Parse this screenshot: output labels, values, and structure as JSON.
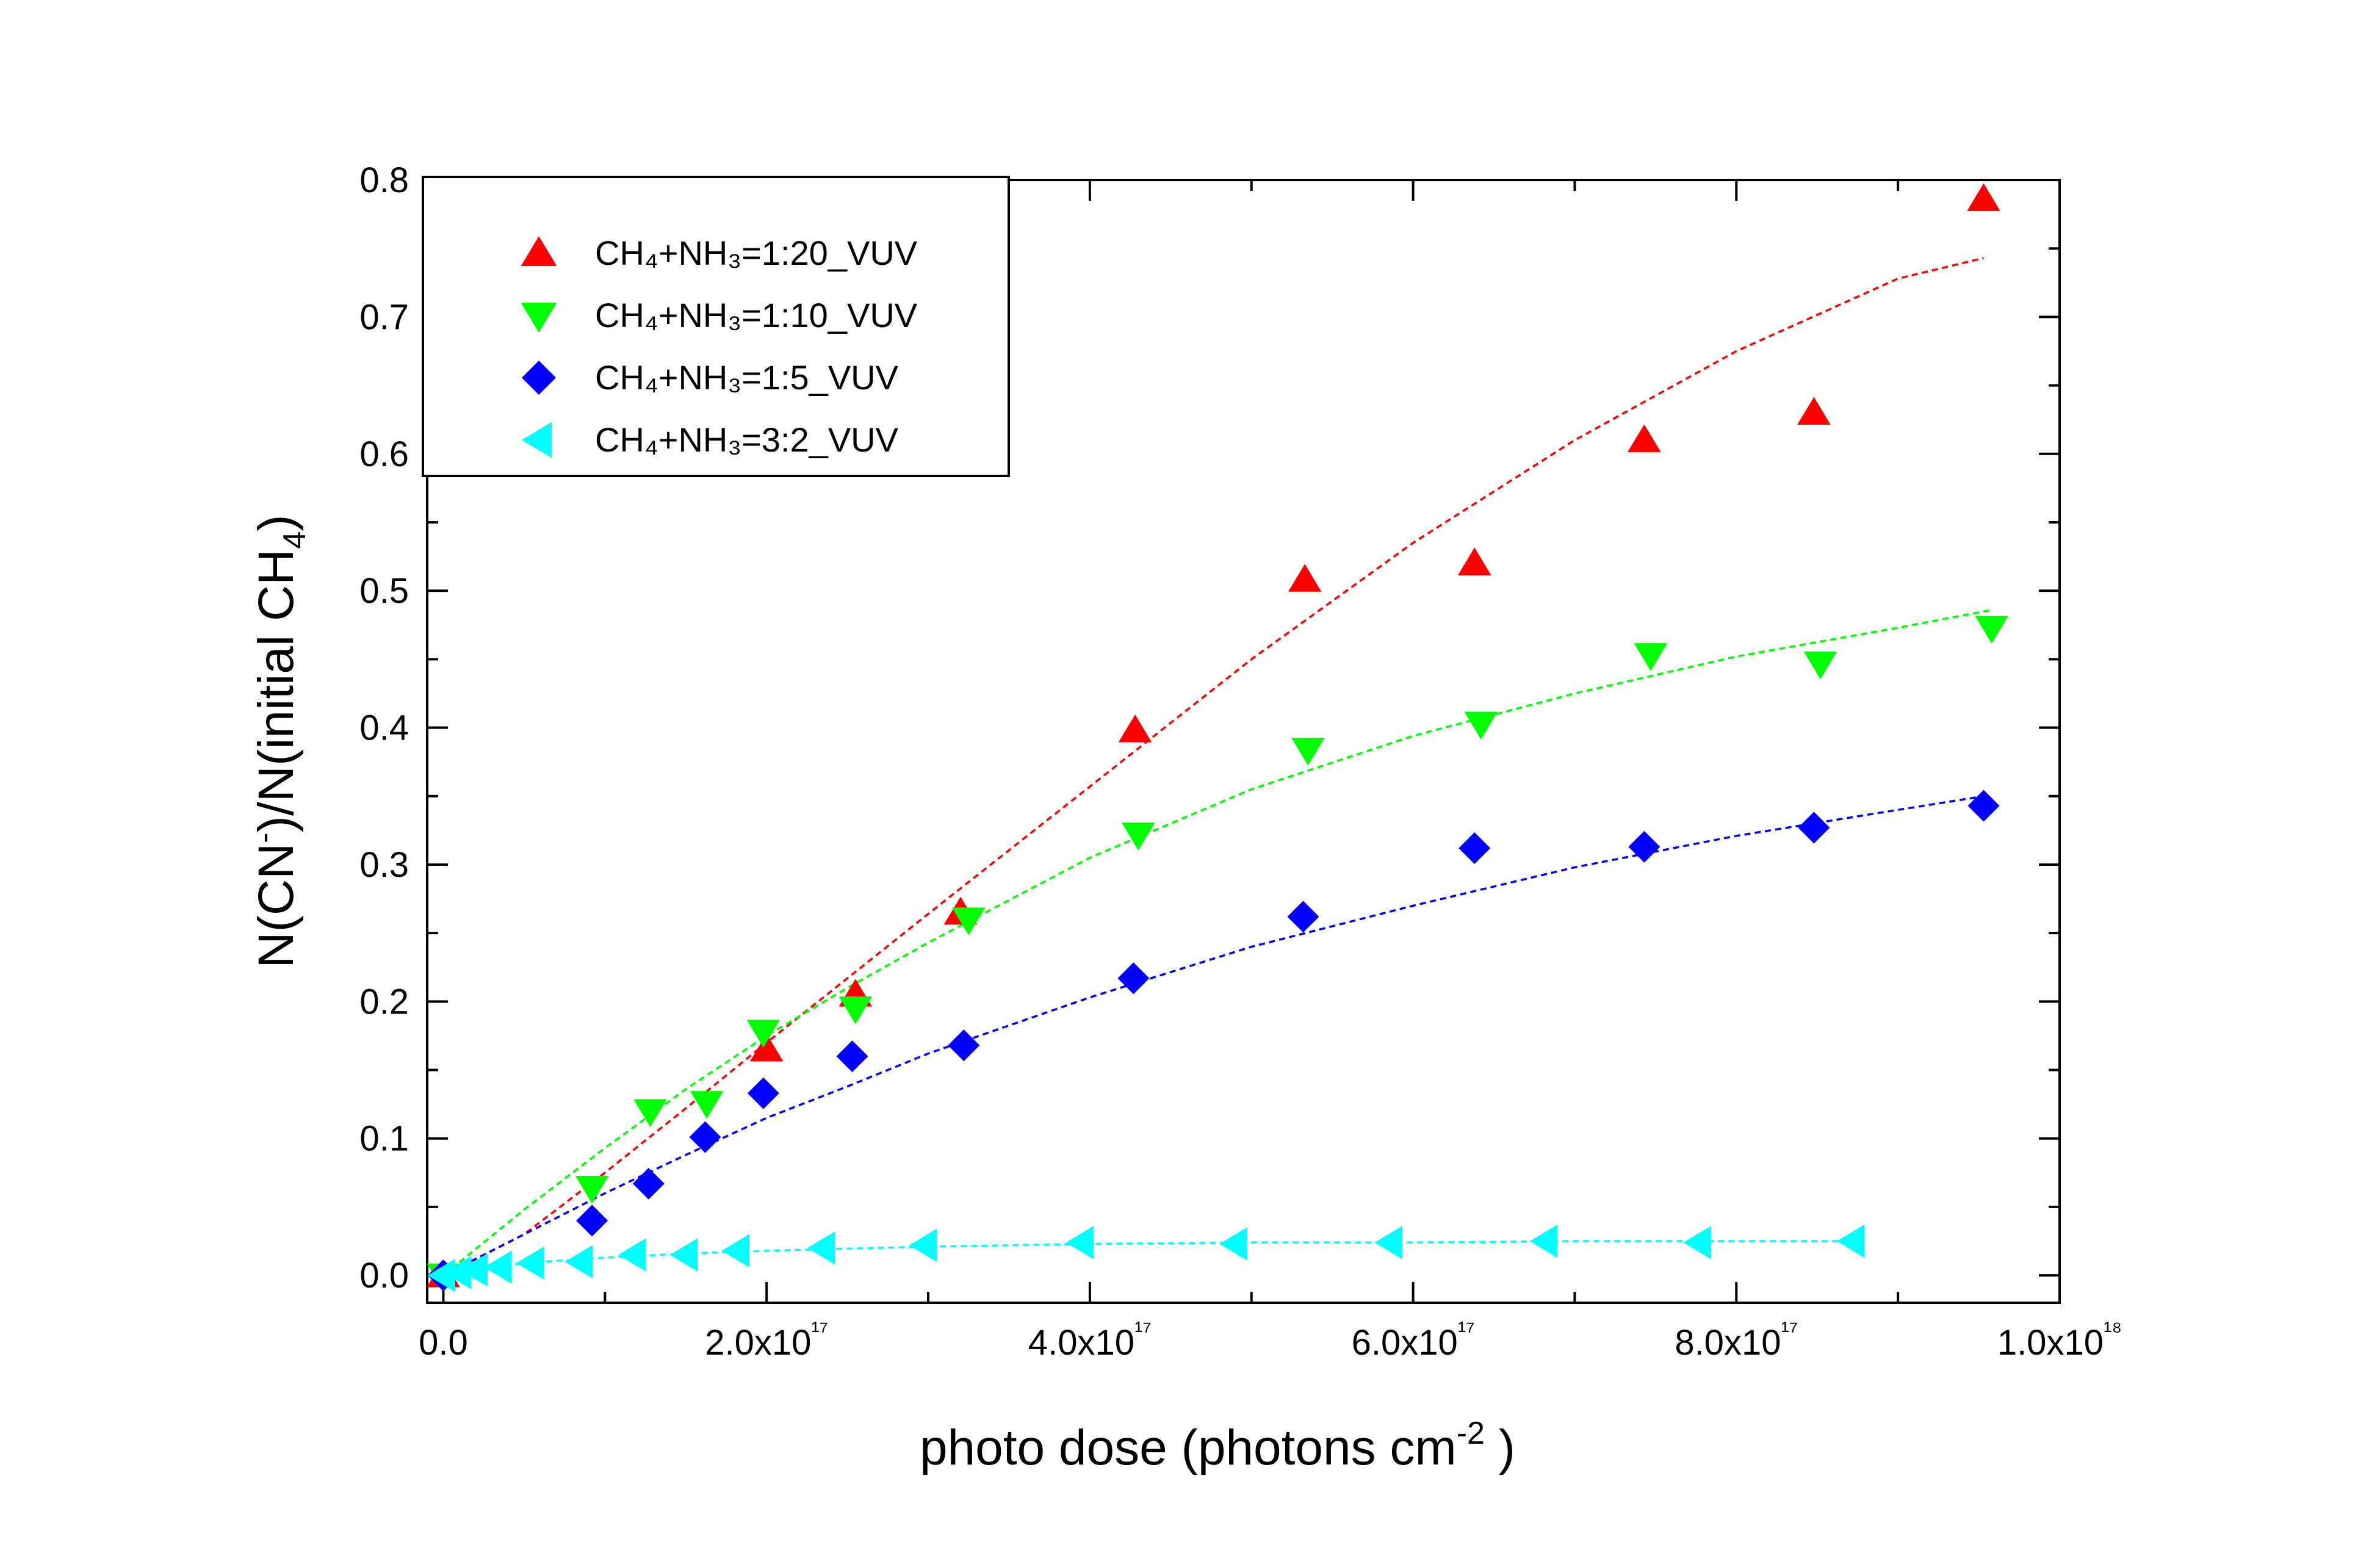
{
  "chart_data": {
    "type": "scatter",
    "xlabel": "photo dose (photons cm⁻² )",
    "ylabel": "N(CN⁻)/N(initial CH₄)",
    "xlim": [
      -1e+16,
      1e+18
    ],
    "ylim": [
      -0.02,
      0.8
    ],
    "x_ticks": [
      {
        "value": 0,
        "label": "0.0"
      },
      {
        "value": 2e+17,
        "label": "2.0x10¹⁷"
      },
      {
        "value": 4e+17,
        "label": "4.0x10¹⁷"
      },
      {
        "value": 6e+17,
        "label": "6.0x10¹⁷"
      },
      {
        "value": 8e+17,
        "label": "8.0x10¹⁷"
      },
      {
        "value": 1e+18,
        "label": "1.0x10¹⁸"
      }
    ],
    "y_ticks": [
      {
        "value": 0.0,
        "label": "0.0"
      },
      {
        "value": 0.1,
        "label": "0.1"
      },
      {
        "value": 0.2,
        "label": "0.2"
      },
      {
        "value": 0.3,
        "label": "0.3"
      },
      {
        "value": 0.4,
        "label": "0.4"
      },
      {
        "value": 0.5,
        "label": "0.5"
      },
      {
        "value": 0.6,
        "label": "0.6"
      },
      {
        "value": 0.7,
        "label": "0.7"
      },
      {
        "value": 0.8,
        "label": "0.8"
      }
    ],
    "grid": false,
    "legend_position": "top-left",
    "series": [
      {
        "name": "CH₄+NH₃=1:20_VUV",
        "color": "#ff0000",
        "marker": "triangle-up",
        "points": [
          [
            0,
            0
          ],
          [
            2e+17,
            0.165
          ],
          [
            2.55e+17,
            0.205
          ],
          [
            3.2e+17,
            0.265
          ],
          [
            4.28e+17,
            0.398
          ],
          [
            5.33e+17,
            0.508
          ],
          [
            6.38e+17,
            0.52
          ],
          [
            7.43e+17,
            0.61
          ],
          [
            8.48e+17,
            0.63
          ],
          [
            9.53e+17,
            0.786
          ]
        ],
        "fit": [
          [
            0,
            0
          ],
          [
            5e+16,
            0.03
          ],
          [
            1e+17,
            0.075
          ],
          [
            1.5e+17,
            0.122
          ],
          [
            2e+17,
            0.17
          ],
          [
            2.5e+17,
            0.217
          ],
          [
            3e+17,
            0.264
          ],
          [
            4e+17,
            0.357
          ],
          [
            5e+17,
            0.45
          ],
          [
            6e+17,
            0.535
          ],
          [
            7e+17,
            0.61
          ],
          [
            8e+17,
            0.675
          ],
          [
            9e+17,
            0.728
          ],
          [
            9.53e+17,
            0.743
          ]
        ]
      },
      {
        "name": "CH₄+NH₃=1:10_VUV",
        "color": "#00ff00",
        "marker": "triangle-down",
        "points": [
          [
            0,
            0
          ],
          [
            9.2e+16,
            0.064
          ],
          [
            1.28e+17,
            0.12
          ],
          [
            1.63e+17,
            0.126
          ],
          [
            1.98e+17,
            0.178
          ],
          [
            2.55e+17,
            0.195
          ],
          [
            3.25e+17,
            0.26
          ],
          [
            4.3e+17,
            0.322
          ],
          [
            5.35e+17,
            0.384
          ],
          [
            6.42e+17,
            0.403
          ],
          [
            7.47e+17,
            0.453
          ],
          [
            8.52e+17,
            0.447
          ],
          [
            9.58e+17,
            0.473
          ]
        ],
        "fit": [
          [
            0,
            0
          ],
          [
            5e+16,
            0.048
          ],
          [
            1e+17,
            0.093
          ],
          [
            1.5e+17,
            0.136
          ],
          [
            2e+17,
            0.175
          ],
          [
            2.5e+17,
            0.21
          ],
          [
            3e+17,
            0.243
          ],
          [
            4e+17,
            0.305
          ],
          [
            5e+17,
            0.355
          ],
          [
            6e+17,
            0.394
          ],
          [
            7e+17,
            0.425
          ],
          [
            8e+17,
            0.452
          ],
          [
            9e+17,
            0.473
          ],
          [
            9.58e+17,
            0.486
          ]
        ]
      },
      {
        "name": "CH₄+NH₃=1:5_VUV",
        "color": "#0000ff",
        "marker": "diamond",
        "points": [
          [
            0,
            0
          ],
          [
            9.2e+16,
            0.04
          ],
          [
            1.27e+17,
            0.067
          ],
          [
            1.62e+17,
            0.101
          ],
          [
            1.98e+17,
            0.133
          ],
          [
            2.53e+17,
            0.16
          ],
          [
            3.22e+17,
            0.168
          ],
          [
            4.27e+17,
            0.217
          ],
          [
            5.32e+17,
            0.262
          ],
          [
            6.38e+17,
            0.312
          ],
          [
            7.43e+17,
            0.313
          ],
          [
            8.48e+17,
            0.327
          ],
          [
            9.53e+17,
            0.343
          ]
        ],
        "fit": [
          [
            0,
            0
          ],
          [
            5e+16,
            0.03
          ],
          [
            1e+17,
            0.06
          ],
          [
            1.5e+17,
            0.088
          ],
          [
            2e+17,
            0.115
          ],
          [
            2.5e+17,
            0.138
          ],
          [
            3e+17,
            0.162
          ],
          [
            4e+17,
            0.203
          ],
          [
            5e+17,
            0.24
          ],
          [
            6e+17,
            0.27
          ],
          [
            7e+17,
            0.298
          ],
          [
            8e+17,
            0.321
          ],
          [
            9e+17,
            0.34
          ],
          [
            9.53e+17,
            0.35
          ]
        ]
      },
      {
        "name": "CH₄+NH₃=3:2_VUV",
        "color": "#00ffff",
        "marker": "triangle-left",
        "points": [
          [
            0,
            0
          ],
          [
            1e+16,
            0.002
          ],
          [
            2e+16,
            0.004
          ],
          [
            3.5e+16,
            0.006
          ],
          [
            5.5e+16,
            0.009
          ],
          [
            8.5e+16,
            0.01
          ],
          [
            1.18e+17,
            0.015
          ],
          [
            1.5e+17,
            0.015
          ],
          [
            1.82e+17,
            0.018
          ],
          [
            2.35e+17,
            0.02
          ],
          [
            2.98e+17,
            0.022
          ],
          [
            3.95e+17,
            0.024
          ],
          [
            4.9e+17,
            0.023
          ],
          [
            5.86e+17,
            0.024
          ],
          [
            6.82e+17,
            0.025
          ],
          [
            7.77e+17,
            0.024
          ],
          [
            8.72e+17,
            0.025
          ]
        ],
        "fit": [
          [
            0,
            0
          ],
          [
            2.5e+16,
            0.005
          ],
          [
            5e+16,
            0.009
          ],
          [
            1e+17,
            0.013
          ],
          [
            1.5e+17,
            0.016
          ],
          [
            2e+17,
            0.018
          ],
          [
            3e+17,
            0.021
          ],
          [
            4e+17,
            0.023
          ],
          [
            5e+17,
            0.024
          ],
          [
            6e+17,
            0.024
          ],
          [
            7e+17,
            0.025
          ],
          [
            8e+17,
            0.025
          ],
          [
            8.72e+17,
            0.025
          ]
        ]
      }
    ]
  }
}
